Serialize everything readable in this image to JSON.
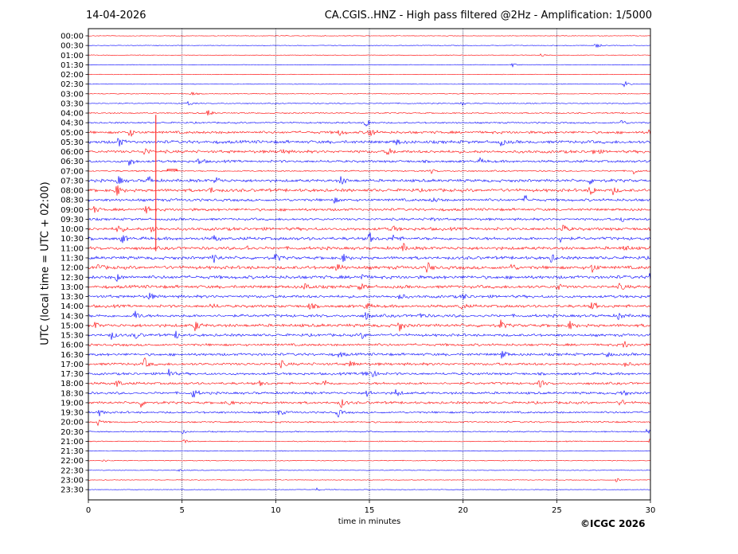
{
  "chart_data": {
    "type": "line",
    "date": "14-04-2026",
    "title": "CA.CGIS..HNZ - High pass filtered @2Hz - Amplification: 1/5000",
    "xlabel": "time in minutes",
    "ylabel": "UTC (local time = UTC + 02:00)",
    "xlim": [
      0,
      30
    ],
    "x_ticks": [
      0,
      5,
      10,
      15,
      20,
      25,
      30
    ],
    "x_grid": true,
    "row_labels": [
      "00:00",
      "00:30",
      "01:00",
      "01:30",
      "02:00",
      "02:30",
      "03:00",
      "03:30",
      "04:00",
      "04:30",
      "05:00",
      "05:30",
      "06:00",
      "06:30",
      "07:00",
      "07:30",
      "08:00",
      "08:30",
      "09:00",
      "09:30",
      "10:00",
      "10:30",
      "11:00",
      "11:30",
      "12:00",
      "12:30",
      "13:00",
      "13:30",
      "14:00",
      "14:30",
      "15:00",
      "15:30",
      "16:00",
      "16:30",
      "17:00",
      "17:30",
      "18:00",
      "18:30",
      "19:00",
      "19:30",
      "20:00",
      "20:30",
      "21:00",
      "21:30",
      "22:00",
      "22:30",
      "23:00",
      "23:30"
    ],
    "trace_colors": [
      "#ff0000",
      "#0000ff"
    ],
    "noise_level": [
      0.3,
      0.3,
      0.3,
      0.3,
      0.3,
      0.3,
      0.4,
      0.5,
      0.6,
      0.8,
      1.3,
      1.5,
      1.4,
      1.2,
      0.7,
      1.4,
      1.5,
      1.3,
      1.3,
      1.2,
      1.5,
      1.5,
      1.5,
      1.5,
      1.6,
      1.6,
      1.5,
      1.4,
      1.4,
      1.4,
      1.5,
      1.3,
      1.2,
      1.3,
      1.3,
      1.2,
      1.2,
      1.2,
      1.2,
      1.0,
      0.8,
      0.6,
      0.5,
      0.4,
      0.4,
      0.3,
      0.3,
      0.3
    ],
    "events": [
      {
        "row": 1,
        "t": 27.1,
        "a": 4
      },
      {
        "row": 2,
        "t": 24.2,
        "a": 3
      },
      {
        "row": 3,
        "t": 22.6,
        "a": 3
      },
      {
        "row": 5,
        "t": 28.6,
        "a": 5
      },
      {
        "row": 6,
        "t": 5.5,
        "a": 3
      },
      {
        "row": 7,
        "t": 5.3,
        "a": 4
      },
      {
        "row": 7,
        "t": 19.9,
        "a": 3
      },
      {
        "row": 8,
        "t": 6.4,
        "a": 5
      },
      {
        "row": 9,
        "t": 14.8,
        "a": 7
      },
      {
        "row": 9,
        "t": 28.4,
        "a": 5
      },
      {
        "row": 10,
        "t": 2.2,
        "a": 6
      },
      {
        "row": 10,
        "t": 15.0,
        "a": 8
      },
      {
        "row": 10,
        "t": 13.4,
        "a": 4
      },
      {
        "row": 10,
        "t": 30.0,
        "a": 9
      },
      {
        "row": 11,
        "t": 1.6,
        "a": 7
      },
      {
        "row": 11,
        "t": 16.4,
        "a": 5
      },
      {
        "row": 11,
        "t": 22.0,
        "a": 5
      },
      {
        "row": 12,
        "t": 3.0,
        "a": 6
      },
      {
        "row": 12,
        "t": 10.3,
        "a": 4
      },
      {
        "row": 12,
        "t": 16.0,
        "a": 5
      },
      {
        "row": 12,
        "t": 27.0,
        "a": 5
      },
      {
        "row": 13,
        "t": 2.2,
        "a": 7
      },
      {
        "row": 13,
        "t": 5.9,
        "a": 5
      },
      {
        "row": 13,
        "t": 20.9,
        "a": 3
      },
      {
        "row": 14,
        "t": 18.3,
        "a": 3
      },
      {
        "row": 14,
        "t": 29.1,
        "a": 4
      },
      {
        "row": 15,
        "t": 1.6,
        "a": 6
      },
      {
        "row": 15,
        "t": 3.2,
        "a": 6
      },
      {
        "row": 15,
        "t": 6.8,
        "a": 5
      },
      {
        "row": 15,
        "t": 13.5,
        "a": 6
      },
      {
        "row": 15,
        "t": 26.8,
        "a": 5
      },
      {
        "row": 16,
        "t": 1.5,
        "a": 8
      },
      {
        "row": 16,
        "t": 6.5,
        "a": 4
      },
      {
        "row": 16,
        "t": 26.8,
        "a": 7
      },
      {
        "row": 16,
        "t": 28.0,
        "a": 5
      },
      {
        "row": 17,
        "t": 13.1,
        "a": 4
      },
      {
        "row": 17,
        "t": 18.4,
        "a": 4
      },
      {
        "row": 17,
        "t": 23.3,
        "a": 6
      },
      {
        "row": 18,
        "t": 3.1,
        "a": 5
      },
      {
        "row": 18,
        "t": 0.3,
        "a": 4
      },
      {
        "row": 19,
        "t": 28.5,
        "a": 4
      },
      {
        "row": 19,
        "t": 18.3,
        "a": 3
      },
      {
        "row": 20,
        "t": 1.6,
        "a": 7
      },
      {
        "row": 20,
        "t": 3.4,
        "a": 6
      },
      {
        "row": 20,
        "t": 16.2,
        "a": 5
      },
      {
        "row": 20,
        "t": 25.3,
        "a": 6
      },
      {
        "row": 21,
        "t": 1.8,
        "a": 6
      },
      {
        "row": 21,
        "t": 6.7,
        "a": 5
      },
      {
        "row": 21,
        "t": 15.0,
        "a": 7
      },
      {
        "row": 21,
        "t": 16.3,
        "a": 5
      },
      {
        "row": 21,
        "t": 25.2,
        "a": 5
      },
      {
        "row": 22,
        "t": 8.4,
        "a": 5
      },
      {
        "row": 22,
        "t": 16.8,
        "a": 5
      },
      {
        "row": 22,
        "t": 28.6,
        "a": 5
      },
      {
        "row": 23,
        "t": 6.7,
        "a": 6
      },
      {
        "row": 23,
        "t": 10.0,
        "a": 5
      },
      {
        "row": 23,
        "t": 13.6,
        "a": 5
      },
      {
        "row": 23,
        "t": 24.7,
        "a": 5
      },
      {
        "row": 24,
        "t": 0.5,
        "a": 5
      },
      {
        "row": 24,
        "t": 13.3,
        "a": 7
      },
      {
        "row": 24,
        "t": 18.1,
        "a": 7
      },
      {
        "row": 24,
        "t": 22.6,
        "a": 5
      },
      {
        "row": 24,
        "t": 26.9,
        "a": 6
      },
      {
        "row": 25,
        "t": 1.5,
        "a": 5
      },
      {
        "row": 25,
        "t": 14.6,
        "a": 4
      },
      {
        "row": 25,
        "t": 30.0,
        "a": 7
      },
      {
        "row": 26,
        "t": 11.6,
        "a": 6
      },
      {
        "row": 26,
        "t": 14.5,
        "a": 5
      },
      {
        "row": 26,
        "t": 25.0,
        "a": 6
      },
      {
        "row": 26,
        "t": 28.4,
        "a": 5
      },
      {
        "row": 27,
        "t": 3.2,
        "a": 6
      },
      {
        "row": 27,
        "t": 16.6,
        "a": 5
      },
      {
        "row": 27,
        "t": 20.0,
        "a": 4
      },
      {
        "row": 28,
        "t": 6.6,
        "a": 4
      },
      {
        "row": 28,
        "t": 11.8,
        "a": 4
      },
      {
        "row": 28,
        "t": 14.8,
        "a": 5
      },
      {
        "row": 28,
        "t": 19.9,
        "a": 4
      },
      {
        "row": 28,
        "t": 26.9,
        "a": 6
      },
      {
        "row": 29,
        "t": 2.5,
        "a": 7
      },
      {
        "row": 29,
        "t": 14.8,
        "a": 5
      },
      {
        "row": 29,
        "t": 17.7,
        "a": 4
      },
      {
        "row": 29,
        "t": 28.3,
        "a": 5
      },
      {
        "row": 30,
        "t": 0.3,
        "a": 5
      },
      {
        "row": 30,
        "t": 5.7,
        "a": 7
      },
      {
        "row": 30,
        "t": 16.6,
        "a": 7
      },
      {
        "row": 30,
        "t": 22.0,
        "a": 6
      },
      {
        "row": 30,
        "t": 25.7,
        "a": 5
      },
      {
        "row": 31,
        "t": 1.2,
        "a": 6
      },
      {
        "row": 31,
        "t": 2.5,
        "a": 5
      },
      {
        "row": 31,
        "t": 4.7,
        "a": 5
      },
      {
        "row": 31,
        "t": 14.6,
        "a": 4
      },
      {
        "row": 32,
        "t": 28.6,
        "a": 5
      },
      {
        "row": 33,
        "t": 22.1,
        "a": 7
      },
      {
        "row": 33,
        "t": 13.4,
        "a": 4
      },
      {
        "row": 33,
        "t": 27.7,
        "a": 4
      },
      {
        "row": 34,
        "t": 3.0,
        "a": 7
      },
      {
        "row": 34,
        "t": 14.0,
        "a": 5
      },
      {
        "row": 34,
        "t": 28.6,
        "a": 5
      },
      {
        "row": 34,
        "t": 10.3,
        "a": 4
      },
      {
        "row": 35,
        "t": 4.3,
        "a": 6
      },
      {
        "row": 35,
        "t": 15.1,
        "a": 7
      },
      {
        "row": 35,
        "t": 14.7,
        "a": 4
      },
      {
        "row": 36,
        "t": 1.5,
        "a": 6
      },
      {
        "row": 36,
        "t": 9.2,
        "a": 4
      },
      {
        "row": 36,
        "t": 12.6,
        "a": 5
      },
      {
        "row": 36,
        "t": 24.1,
        "a": 5
      },
      {
        "row": 37,
        "t": 5.6,
        "a": 7
      },
      {
        "row": 37,
        "t": 14.9,
        "a": 5
      },
      {
        "row": 37,
        "t": 16.4,
        "a": 5
      },
      {
        "row": 37,
        "t": 28.5,
        "a": 5
      },
      {
        "row": 38,
        "t": 2.8,
        "a": 5
      },
      {
        "row": 38,
        "t": 7.4,
        "a": 5
      },
      {
        "row": 38,
        "t": 13.5,
        "a": 6
      },
      {
        "row": 38,
        "t": 28.4,
        "a": 5
      },
      {
        "row": 39,
        "t": 0.6,
        "a": 4
      },
      {
        "row": 39,
        "t": 10.2,
        "a": 4
      },
      {
        "row": 39,
        "t": 13.3,
        "a": 6
      },
      {
        "row": 40,
        "t": 0.5,
        "a": 4
      },
      {
        "row": 41,
        "t": 5.0,
        "a": 3
      },
      {
        "row": 41,
        "t": 29.8,
        "a": 3
      },
      {
        "row": 42,
        "t": 5.1,
        "a": 3
      },
      {
        "row": 42,
        "t": 30.0,
        "a": 4
      },
      {
        "row": 44,
        "t": 0.8,
        "a": 2
      },
      {
        "row": 45,
        "t": 4.8,
        "a": 2
      },
      {
        "row": 46,
        "t": 28.2,
        "a": 3
      },
      {
        "row": 47,
        "t": 12.2,
        "a": 2
      }
    ],
    "artifacts": [
      {
        "row": 10,
        "t": 3.6,
        "type": "spike_down",
        "to_row": 22.3
      },
      {
        "row": 14,
        "t": 4.3,
        "type": "block_up"
      }
    ]
  },
  "footer": {
    "copyright": "©ICGC 2026"
  }
}
